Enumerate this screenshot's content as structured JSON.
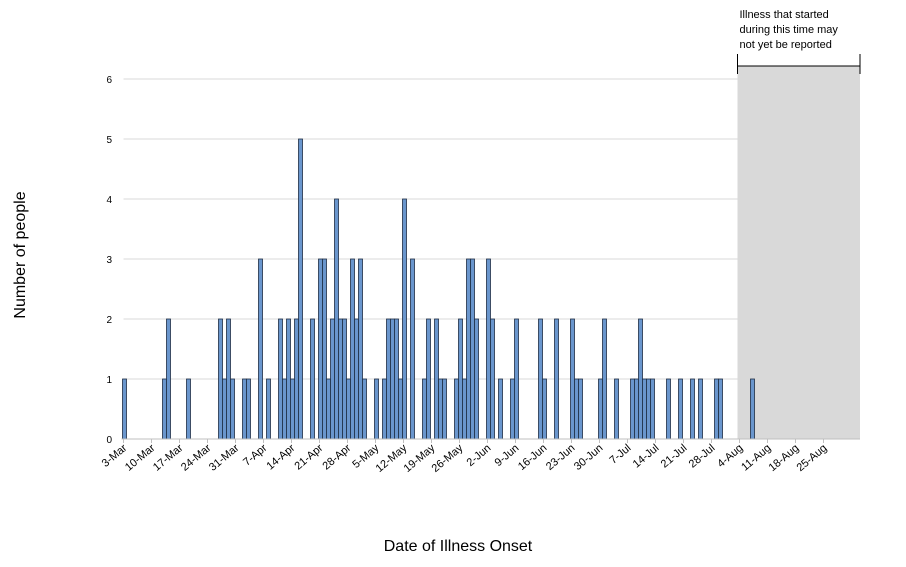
{
  "chart_data": {
    "type": "bar",
    "title": "",
    "xlabel": "Date of Illness Onset",
    "ylabel": "Number of people",
    "ylim": [
      0,
      6
    ],
    "yticks": [
      0,
      1,
      2,
      3,
      4,
      5,
      6
    ],
    "grid": true,
    "bar_color": "#6a96cd",
    "bar_edge_color": "#1f2d44",
    "x_start_date": "3-Mar",
    "x_end_date": "31-Aug",
    "x_tick_labels": [
      "3-Mar",
      "10-Mar",
      "17-Mar",
      "24-Mar",
      "31-Mar",
      "7-Apr",
      "14-Apr",
      "21-Apr",
      "28-Apr",
      "5-May",
      "12-May",
      "19-May",
      "26-May",
      "2-Jun",
      "9-Jun",
      "16-Jun",
      "23-Jun",
      "30-Jun",
      "7-Jul",
      "14-Jul",
      "21-Jul",
      "28-Jul",
      "4-Aug",
      "11-Aug",
      "18-Aug",
      "25-Aug"
    ],
    "data": [
      [
        "3-Mar",
        1
      ],
      [
        "13-Mar",
        1
      ],
      [
        "14-Mar",
        2
      ],
      [
        "19-Mar",
        1
      ],
      [
        "27-Mar",
        2
      ],
      [
        "28-Mar",
        1
      ],
      [
        "29-Mar",
        2
      ],
      [
        "30-Mar",
        1
      ],
      [
        "2-Apr",
        1
      ],
      [
        "3-Apr",
        1
      ],
      [
        "6-Apr",
        3
      ],
      [
        "8-Apr",
        1
      ],
      [
        "11-Apr",
        2
      ],
      [
        "12-Apr",
        1
      ],
      [
        "13-Apr",
        2
      ],
      [
        "14-Apr",
        1
      ],
      [
        "15-Apr",
        2
      ],
      [
        "16-Apr",
        5
      ],
      [
        "19-Apr",
        2
      ],
      [
        "21-Apr",
        3
      ],
      [
        "22-Apr",
        3
      ],
      [
        "23-Apr",
        1
      ],
      [
        "24-Apr",
        2
      ],
      [
        "25-Apr",
        4
      ],
      [
        "26-Apr",
        2
      ],
      [
        "27-Apr",
        2
      ],
      [
        "28-Apr",
        1
      ],
      [
        "29-Apr",
        3
      ],
      [
        "30-Apr",
        2
      ],
      [
        "1-May",
        3
      ],
      [
        "2-May",
        1
      ],
      [
        "5-May",
        1
      ],
      [
        "7-May",
        1
      ],
      [
        "8-May",
        2
      ],
      [
        "9-May",
        2
      ],
      [
        "10-May",
        2
      ],
      [
        "11-May",
        1
      ],
      [
        "12-May",
        4
      ],
      [
        "14-May",
        3
      ],
      [
        "17-May",
        1
      ],
      [
        "18-May",
        2
      ],
      [
        "20-May",
        2
      ],
      [
        "21-May",
        1
      ],
      [
        "22-May",
        1
      ],
      [
        "25-May",
        1
      ],
      [
        "26-May",
        2
      ],
      [
        "27-May",
        1
      ],
      [
        "28-May",
        3
      ],
      [
        "29-May",
        3
      ],
      [
        "30-May",
        2
      ],
      [
        "2-Jun",
        3
      ],
      [
        "3-Jun",
        2
      ],
      [
        "5-Jun",
        1
      ],
      [
        "8-Jun",
        1
      ],
      [
        "9-Jun",
        2
      ],
      [
        "15-Jun",
        2
      ],
      [
        "16-Jun",
        1
      ],
      [
        "19-Jun",
        2
      ],
      [
        "23-Jun",
        2
      ],
      [
        "24-Jun",
        1
      ],
      [
        "25-Jun",
        1
      ],
      [
        "30-Jun",
        1
      ],
      [
        "1-Jul",
        2
      ],
      [
        "4-Jul",
        1
      ],
      [
        "8-Jul",
        1
      ],
      [
        "9-Jul",
        1
      ],
      [
        "10-Jul",
        2
      ],
      [
        "11-Jul",
        1
      ],
      [
        "12-Jul",
        1
      ],
      [
        "13-Jul",
        1
      ],
      [
        "17-Jul",
        1
      ],
      [
        "20-Jul",
        1
      ],
      [
        "23-Jul",
        1
      ],
      [
        "25-Jul",
        1
      ],
      [
        "29-Jul",
        1
      ],
      [
        "30-Jul",
        1
      ],
      [
        "7-Aug",
        1
      ]
    ],
    "shaded_region": {
      "from": "4-Aug",
      "to": "31-Aug",
      "color": "#d9d9d9",
      "annotation": [
        "Illness that started",
        "during this time may",
        "not yet  be reported"
      ]
    }
  }
}
